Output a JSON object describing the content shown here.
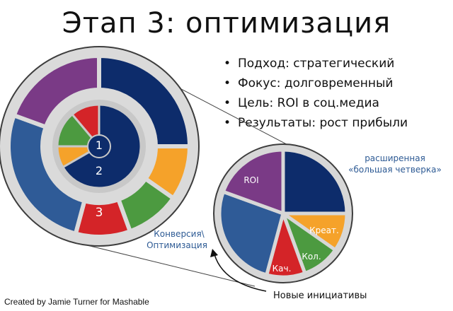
{
  "title": "Этап 3: оптимизация",
  "bullets": [
    "Подход: стратегический",
    "Фокус: долговременный",
    "Цель: ROI в соц.медиа",
    "Результаты: рост прибыли"
  ],
  "left_diagram": {
    "inner_numbers": [
      "1",
      "2"
    ],
    "outer_number": "3"
  },
  "right_pie": {
    "labels": {
      "roi": "ROI",
      "creative": "Креат.",
      "collab": "Кол.",
      "quality": "Кач."
    }
  },
  "annotations": {
    "expanded": [
      "расширенная",
      "«большая четверка»"
    ],
    "conversion": [
      "Конверсия\\",
      "Оптимизация"
    ],
    "new_initiatives": "Новые инициативы"
  },
  "credit": "Created by Jamie Turner for Mashable",
  "colors": {
    "navy": "#0d2c6b",
    "orange": "#f5a22a",
    "green": "#4c9a40",
    "red": "#d42428",
    "blue": "#2f5b97",
    "purple": "#7a3a86",
    "ring_gray": "#d7d7d7",
    "outline": "#444444",
    "annotation_blue": "#2d5a94"
  }
}
